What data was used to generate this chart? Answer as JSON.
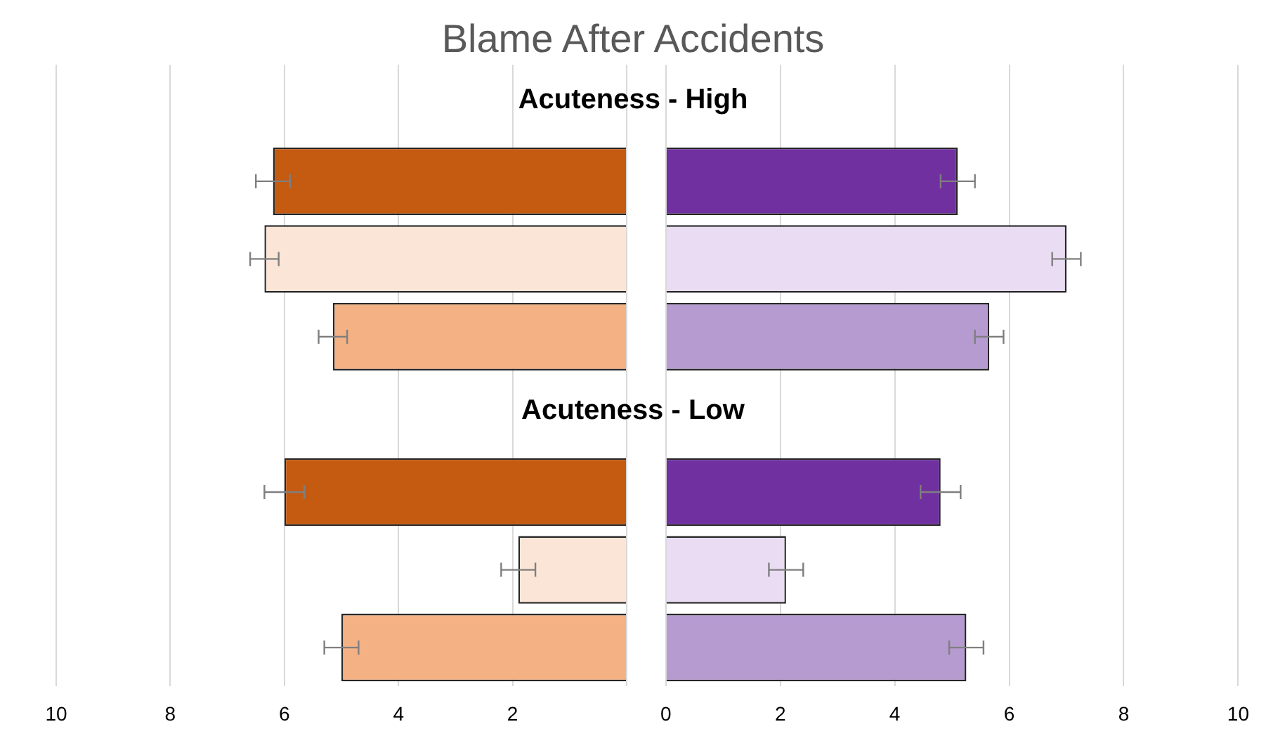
{
  "chart_data": [
    {
      "type": "bar",
      "orientation": "horizontal",
      "title": "Blame After Accidents",
      "annotations": [
        "Acuteness - High",
        "Acuteness - Low"
      ],
      "categories": [
        null,
        null,
        null,
        null,
        null,
        null,
        null,
        null
      ],
      "values": [
        null,
        6.2,
        6.35,
        5.15,
        null,
        6.0,
        1.9,
        5.0
      ],
      "colors": [
        null,
        "#c55a11",
        "#fbe5d6",
        "#f4b183",
        null,
        "#c55a11",
        "#fbe5d6",
        "#f4b183"
      ],
      "errors": [
        null,
        0.3,
        0.25,
        0.25,
        null,
        0.35,
        0.3,
        0.3
      ],
      "xlim": [
        10,
        0
      ],
      "xticks": [
        10,
        8,
        6,
        4,
        2,
        {
          "value": 0,
          "label": null
        }
      ],
      "grid": "x",
      "tick_labels": "x"
    },
    {
      "type": "bar",
      "orientation": "horizontal",
      "categories": [
        null,
        null,
        null,
        null,
        null,
        null,
        null,
        null
      ],
      "values": [
        null,
        5.1,
        7.0,
        5.65,
        null,
        4.8,
        2.1,
        5.25
      ],
      "colors": [
        null,
        "#7030a0",
        "#e9dcf3",
        "#b69bd0",
        null,
        "#7030a0",
        "#e9dcf3",
        "#b69bd0"
      ],
      "errors": [
        null,
        0.3,
        0.25,
        0.25,
        null,
        0.35,
        0.3,
        0.3
      ],
      "xlim": [
        0,
        10
      ],
      "xticks": [
        0,
        2,
        4,
        6,
        8,
        10
      ],
      "grid": "x",
      "tick_labels": "x"
    }
  ]
}
